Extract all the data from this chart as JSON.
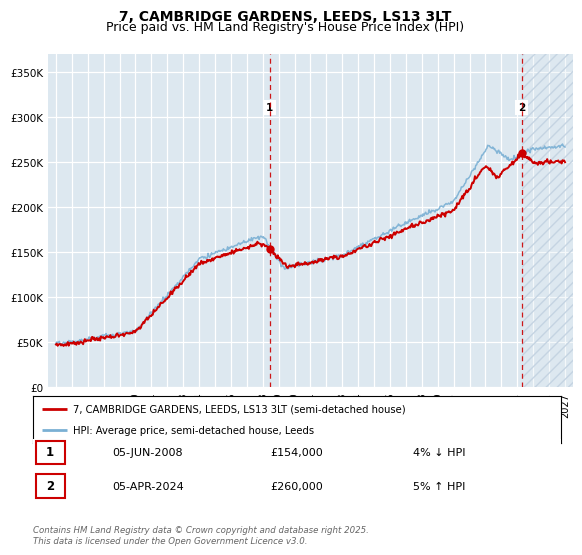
{
  "title": "7, CAMBRIDGE GARDENS, LEEDS, LS13 3LT",
  "subtitle": "Price paid vs. HM Land Registry's House Price Index (HPI)",
  "xlim": [
    1994.5,
    2027.5
  ],
  "ylim": [
    0,
    370000
  ],
  "yticks": [
    0,
    50000,
    100000,
    150000,
    200000,
    250000,
    300000,
    350000
  ],
  "ytick_labels": [
    "£0",
    "£50K",
    "£100K",
    "£150K",
    "£200K",
    "£250K",
    "£300K",
    "£350K"
  ],
  "xticks": [
    1995,
    1996,
    1997,
    1998,
    1999,
    2000,
    2001,
    2002,
    2003,
    2004,
    2005,
    2006,
    2007,
    2008,
    2009,
    2010,
    2011,
    2012,
    2013,
    2014,
    2015,
    2016,
    2017,
    2018,
    2019,
    2020,
    2021,
    2022,
    2023,
    2024,
    2025,
    2026,
    2027
  ],
  "red_color": "#cc0000",
  "blue_color": "#7ab0d4",
  "marker1_x": 2008.44,
  "marker1_y": 154000,
  "marker2_x": 2024.27,
  "marker2_y": 260000,
  "vline1_x": 2008.44,
  "vline2_x": 2024.27,
  "plot_bg": "#dde8f0",
  "legend_label_red": "7, CAMBRIDGE GARDENS, LEEDS, LS13 3LT (semi-detached house)",
  "legend_label_blue": "HPI: Average price, semi-detached house, Leeds",
  "annotation1_date": "05-JUN-2008",
  "annotation1_price": "£154,000",
  "annotation1_hpi": "4% ↓ HPI",
  "annotation2_date": "05-APR-2024",
  "annotation2_price": "£260,000",
  "annotation2_hpi": "5% ↑ HPI",
  "footer": "Contains HM Land Registry data © Crown copyright and database right 2025.\nThis data is licensed under the Open Government Licence v3.0.",
  "title_fontsize": 10,
  "subtitle_fontsize": 9,
  "tick_fontsize": 7.5
}
